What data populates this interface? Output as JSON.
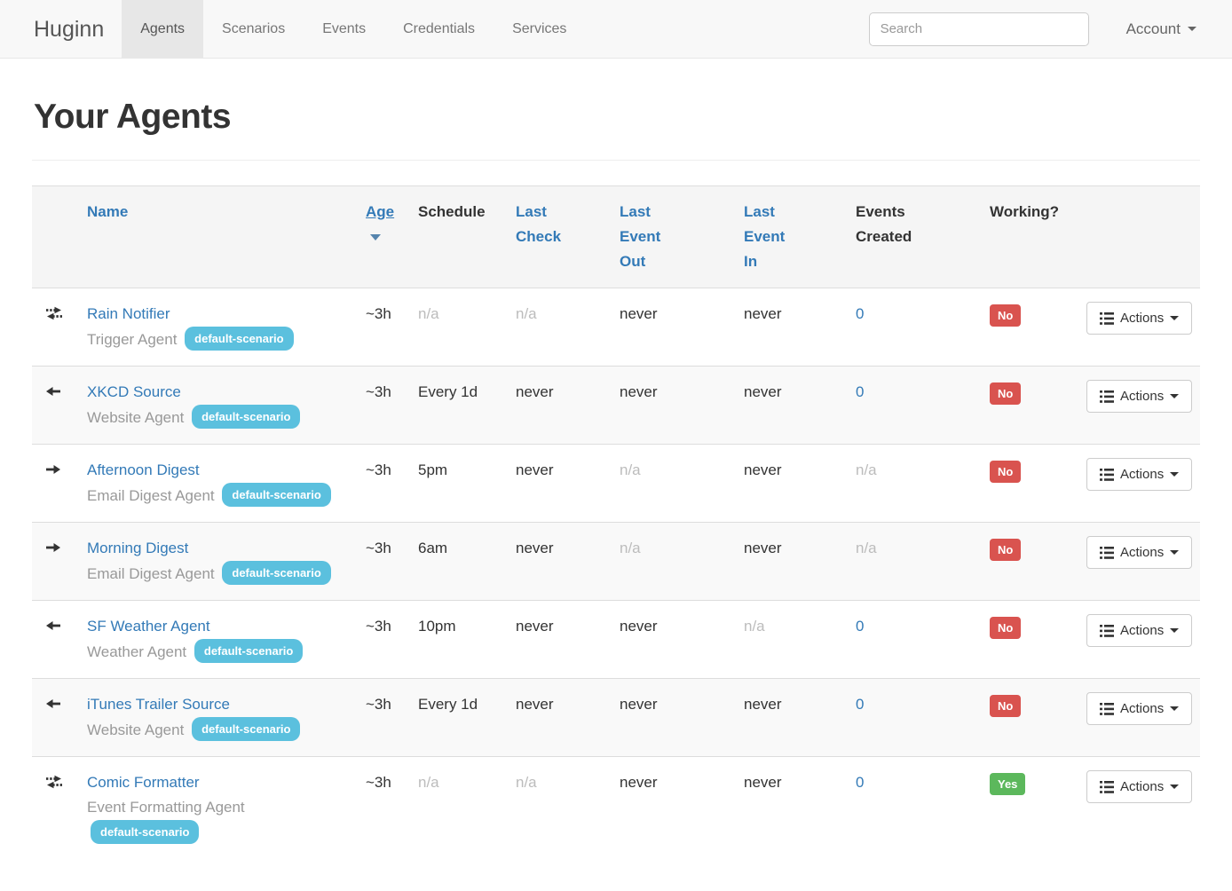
{
  "navbar": {
    "brand": "Huginn",
    "items": [
      {
        "label": "Agents",
        "active": true
      },
      {
        "label": "Scenarios",
        "active": false
      },
      {
        "label": "Events",
        "active": false
      },
      {
        "label": "Credentials",
        "active": false
      },
      {
        "label": "Services",
        "active": false
      }
    ],
    "search_placeholder": "Search",
    "account_label": "Account"
  },
  "page": {
    "title": "Your Agents"
  },
  "table": {
    "headers": {
      "name": "Name",
      "age": "Age",
      "schedule": "Schedule",
      "last_check": "Last Check",
      "last_event_out": "Last Event Out",
      "last_event_in": "Last Event In",
      "events_created": "Events Created",
      "working": "Working?"
    },
    "actions_label": "Actions",
    "rows": [
      {
        "icon": "exchange",
        "name": "Rain Notifier",
        "type": "Trigger Agent",
        "scenario": "default-scenario",
        "age": "~3h",
        "schedule": "n/a",
        "last_check": "n/a",
        "last_event_out": "never",
        "last_event_in": "never",
        "events_created": "0",
        "working": "No"
      },
      {
        "icon": "arrow-left",
        "name": "XKCD Source",
        "type": "Website Agent",
        "scenario": "default-scenario",
        "age": "~3h",
        "schedule": "Every 1d",
        "last_check": "never",
        "last_event_out": "never",
        "last_event_in": "never",
        "events_created": "0",
        "working": "No"
      },
      {
        "icon": "arrow-right",
        "name": "Afternoon Digest",
        "type": "Email Digest Agent",
        "scenario": "default-scenario",
        "age": "~3h",
        "schedule": "5pm",
        "last_check": "never",
        "last_event_out": "n/a",
        "last_event_in": "never",
        "events_created": "n/a",
        "working": "No"
      },
      {
        "icon": "arrow-right",
        "name": "Morning Digest",
        "type": "Email Digest Agent",
        "scenario": "default-scenario",
        "age": "~3h",
        "schedule": "6am",
        "last_check": "never",
        "last_event_out": "n/a",
        "last_event_in": "never",
        "events_created": "n/a",
        "working": "No"
      },
      {
        "icon": "arrow-left",
        "name": "SF Weather Agent",
        "type": "Weather Agent",
        "scenario": "default-scenario",
        "age": "~3h",
        "schedule": "10pm",
        "last_check": "never",
        "last_event_out": "never",
        "last_event_in": "n/a",
        "events_created": "0",
        "working": "No"
      },
      {
        "icon": "arrow-left",
        "name": "iTunes Trailer Source",
        "type": "Website Agent",
        "scenario": "default-scenario",
        "age": "~3h",
        "schedule": "Every 1d",
        "last_check": "never",
        "last_event_out": "never",
        "last_event_in": "never",
        "events_created": "0",
        "working": "No"
      },
      {
        "icon": "exchange",
        "name": "Comic Formatter",
        "type": "Event Formatting Agent",
        "scenario": "default-scenario",
        "age": "~3h",
        "schedule": "n/a",
        "last_check": "n/a",
        "last_event_out": "never",
        "last_event_in": "never",
        "events_created": "0",
        "working": "Yes"
      }
    ]
  },
  "colors": {
    "accent_blue": "#337ab7",
    "badge_info": "#5bc0de",
    "badge_danger": "#d9534f",
    "badge_success": "#5cb85c"
  }
}
